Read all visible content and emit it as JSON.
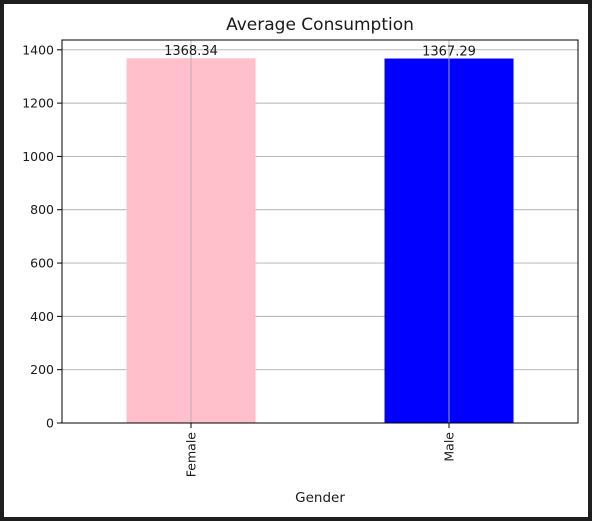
{
  "chart_data": {
    "type": "bar",
    "title": "Average Consumption",
    "xlabel": "Gender",
    "ylabel": "",
    "categories": [
      "Female",
      "Male"
    ],
    "values": [
      1368.34,
      1367.29
    ],
    "data_labels": [
      "1368.34",
      "1367.29"
    ],
    "colors": [
      "#ffc0cb",
      "#0000ff"
    ],
    "ylim": [
      0,
      1436.76
    ],
    "yticks": [
      0,
      200,
      400,
      600,
      800,
      1000,
      1200,
      1400
    ],
    "ytick_labels": [
      "0",
      "200",
      "400",
      "600",
      "800",
      "1000",
      "1200",
      "1400"
    ],
    "grid": true,
    "legend": "none",
    "x_tick_rotation": "vertical"
  }
}
